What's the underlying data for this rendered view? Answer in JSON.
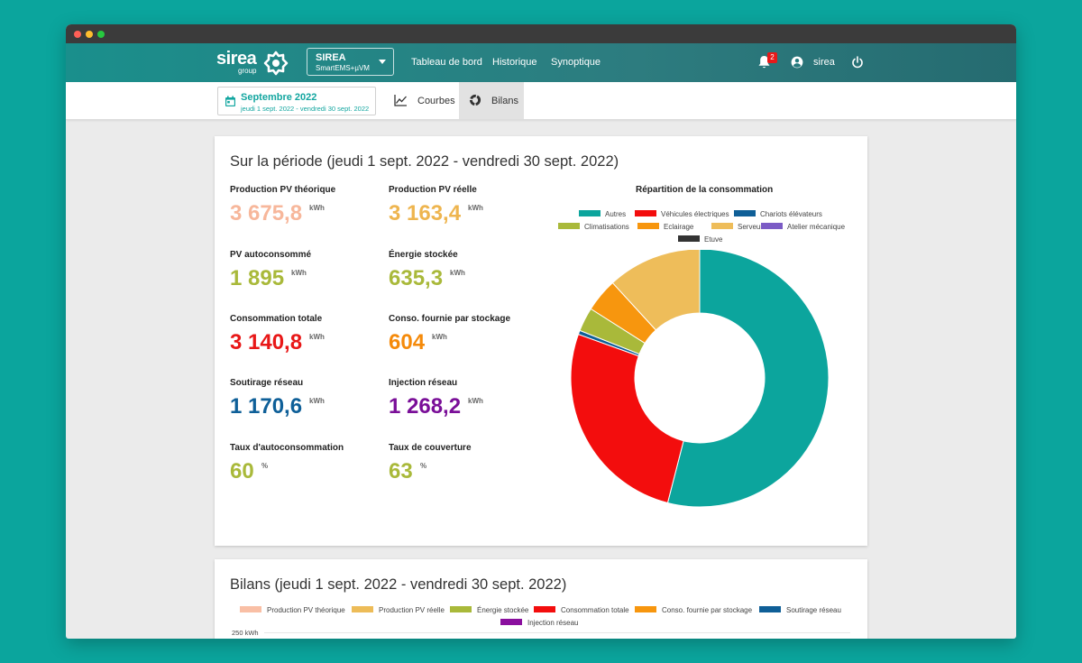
{
  "app": {
    "logo_text": "sirea",
    "logo_sub": "group",
    "site_select": {
      "name": "SIREA",
      "sub": "SmartEMS+µVM"
    },
    "nav": {
      "dashboard": "Tableau de bord",
      "history": "Historique",
      "synoptic": "Synoptique"
    },
    "notifications_count": "2",
    "user": "sirea"
  },
  "period": {
    "title": "Septembre 2022",
    "range": "jeudi 1 sept. 2022 - vendredi 30 sept. 2022"
  },
  "tabs": {
    "courbes": "Courbes",
    "bilans": "Bilans"
  },
  "summary": {
    "title": "Sur la période (jeudi 1 sept. 2022 - vendredi 30 sept. 2022)",
    "metrics": [
      {
        "label": "Production PV théorique",
        "value": "3 675,8",
        "unit": "kWh",
        "color": "#f7b79b"
      },
      {
        "label": "Production PV réelle",
        "value": "3 163,4",
        "unit": "kWh",
        "color": "#eeb54f"
      },
      {
        "label": "PV autoconsommé",
        "value": "1 895",
        "unit": "kWh",
        "color": "#a9b93a"
      },
      {
        "label": "Énergie stockée",
        "value": "635,3",
        "unit": "kWh",
        "color": "#a9b93a"
      },
      {
        "label": "Consommation totale",
        "value": "3 140,8",
        "unit": "kWh",
        "color": "#e81717"
      },
      {
        "label": "Conso. fournie par stockage",
        "value": "604",
        "unit": "kWh",
        "color": "#f58a0a"
      },
      {
        "label": "Soutirage réseau",
        "value": "1 170,6",
        "unit": "kWh",
        "color": "#0e5f98"
      },
      {
        "label": "Injection réseau",
        "value": "1 268,2",
        "unit": "kWh",
        "color": "#7a0f98"
      },
      {
        "label": "Taux d'autoconsommation",
        "value": "60",
        "unit": "%",
        "color": "#a9b93a"
      },
      {
        "label": "Taux de couverture",
        "value": "63",
        "unit": "%",
        "color": "#a9b93a"
      }
    ]
  },
  "chart_data": {
    "type": "pie",
    "title": "Répartition de la consommation",
    "labels": [
      "Autres",
      "Véhicules électriques",
      "Chariots élévateurs",
      "Climatisations",
      "Eclairage",
      "Serveurs",
      "Atelier mécanique",
      "Etuve"
    ],
    "values": [
      54.0,
      26.5,
      0.5,
      3.0,
      4.2,
      11.8,
      0.0,
      0.0
    ],
    "colors": [
      "#0ca59d",
      "#f30d0d",
      "#0f5f97",
      "#a9b93a",
      "#f7960e",
      "#eebd5a",
      "#7b5bc5",
      "#333333"
    ],
    "legend": "top"
  },
  "bilans": {
    "title": "Bilans (jeudi 1 sept. 2022 - vendredi 30 sept. 2022)",
    "legend": [
      {
        "name": "Production PV théorique",
        "color": "#f9bfa5"
      },
      {
        "name": "Production PV réelle",
        "color": "#edbc58"
      },
      {
        "name": "Énergie stockée",
        "color": "#a9b93a"
      },
      {
        "name": "Consommation totale",
        "color": "#f30d0d"
      },
      {
        "name": "Conso. fournie par stockage",
        "color": "#f7960e"
      },
      {
        "name": "Soutirage réseau",
        "color": "#0f5f97"
      },
      {
        "name": "Injection réseau",
        "color": "#8a0f9e"
      }
    ],
    "y_tick": "250 kWh"
  }
}
